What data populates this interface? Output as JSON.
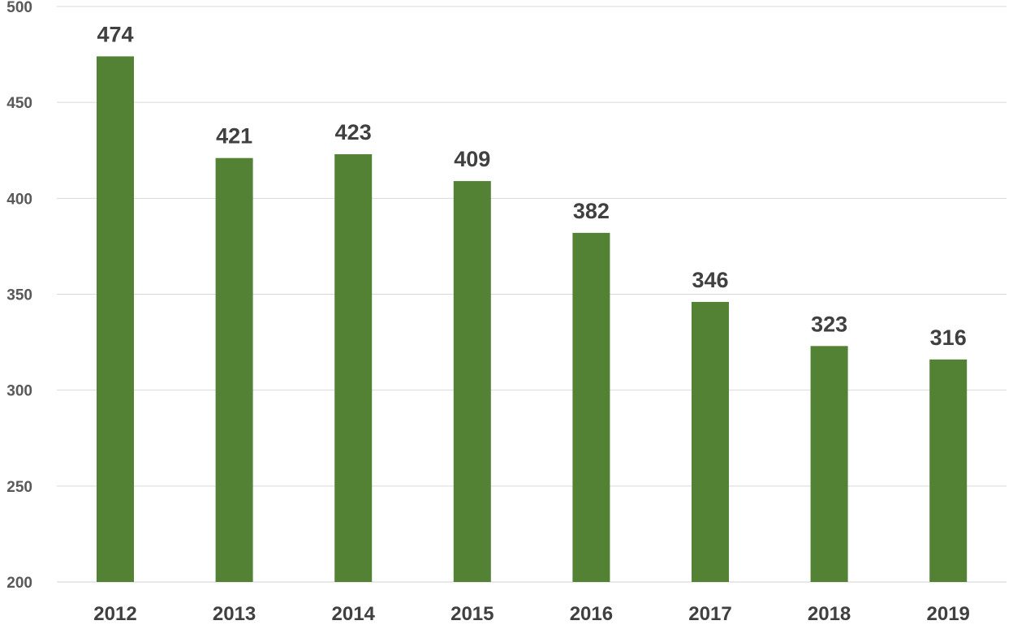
{
  "chart_data": {
    "type": "bar",
    "title": "",
    "xlabel": "",
    "ylabel": "",
    "categories": [
      "2012",
      "2013",
      "2014",
      "2015",
      "2016",
      "2017",
      "2018",
      "2019"
    ],
    "values": [
      474,
      421,
      423,
      409,
      382,
      346,
      323,
      316
    ],
    "ylim": [
      200,
      500
    ],
    "yticks": [
      200,
      250,
      300,
      350,
      400,
      450,
      500
    ],
    "grid": true,
    "legend": "none",
    "data_labels": true,
    "colors": {
      "bar": "#548235",
      "grid": "#d9d9d9",
      "tick_text": "#595959",
      "label_text": "#404040"
    }
  }
}
